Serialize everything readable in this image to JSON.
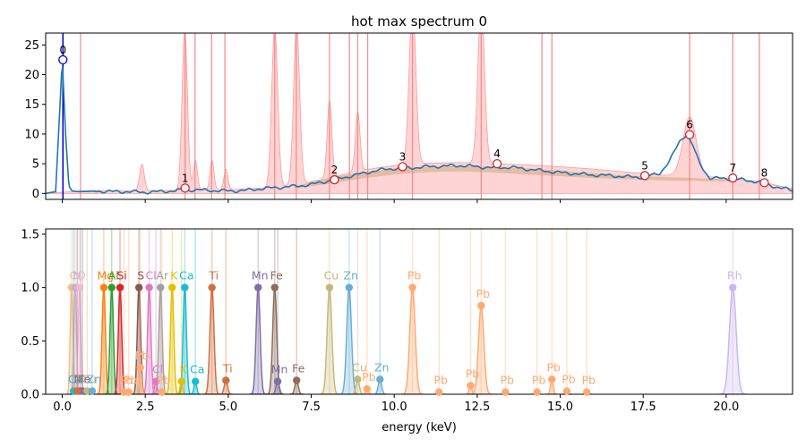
{
  "chart_data": [
    {
      "type": "line",
      "title": "hot max spectrum 0",
      "xlabel": "",
      "ylabel": "",
      "xlim": [
        -0.5,
        22
      ],
      "ylim": [
        -1,
        27
      ],
      "yticks": [
        0,
        5,
        10,
        15,
        20,
        25
      ],
      "xticks": [
        0.0,
        2.5,
        5.0,
        7.5,
        10.0,
        12.5,
        15.0,
        17.5,
        20.0
      ],
      "colors": {
        "spectrum": "#1f77b4",
        "vlines": "#f08080",
        "envelope": "#ffb0b0",
        "background": "#d2a679",
        "peak_marker": "#d62728",
        "zero_peak": "#0000cc"
      },
      "vlines": [
        0.55,
        3.7,
        4.0,
        4.5,
        4.9,
        6.4,
        7.05,
        8.05,
        8.65,
        8.9,
        9.2,
        10.55,
        12.62,
        14.45,
        14.75,
        18.9,
        20.2,
        21.0
      ],
      "spectrum": {
        "x": [
          -0.5,
          -0.2,
          0.0,
          0.1,
          0.2,
          0.3,
          0.5,
          1.0,
          1.5,
          2.0,
          2.5,
          3.0,
          3.5,
          4.0,
          4.5,
          5.0,
          5.5,
          6.0,
          6.5,
          7.0,
          7.5,
          8.0,
          8.5,
          9.0,
          9.5,
          10.0,
          10.5,
          11.0,
          11.5,
          12.0,
          12.5,
          13.0,
          13.5,
          14.0,
          14.5,
          15.0,
          15.5,
          16.0,
          16.5,
          17.0,
          17.5,
          18.0,
          18.3,
          18.6,
          18.8,
          19.0,
          19.2,
          19.5,
          20.0,
          20.5,
          21.0,
          21.5,
          22.0
        ],
        "y": [
          0,
          0.3,
          22.5,
          10,
          1.2,
          0.4,
          0.3,
          0.4,
          0.3,
          0.3,
          0.2,
          0.3,
          0.5,
          0.6,
          0.5,
          0.4,
          0.5,
          0.8,
          1.0,
          1.2,
          1.5,
          2.1,
          2.7,
          3.3,
          3.9,
          4.2,
          4.3,
          4.5,
          4.6,
          4.7,
          4.5,
          4.3,
          4.4,
          4.1,
          3.8,
          3.5,
          3.3,
          3.1,
          3.0,
          2.8,
          2.7,
          3.4,
          5.5,
          8.8,
          10.0,
          8.0,
          5.0,
          2.6,
          2.5,
          2.3,
          1.9,
          1.1,
          0.5
        ]
      },
      "envelope": {
        "x": [
          -0.5,
          0.5,
          1.0,
          2.0,
          3.0,
          4.0,
          5.0,
          6.0,
          7.0,
          8.0,
          9.0,
          10.0,
          11.0,
          12.0,
          13.0,
          14.0,
          15.0,
          16.0,
          17.0,
          18.0,
          19.0,
          20.0,
          21.0,
          22.0
        ],
        "y": [
          0,
          0.4,
          0.5,
          0.4,
          0.5,
          0.6,
          0.6,
          0.9,
          1.4,
          2.6,
          3.9,
          4.7,
          5.1,
          5.2,
          5.0,
          4.8,
          4.5,
          4.1,
          3.6,
          3.1,
          2.9,
          2.6,
          2.0,
          0.8
        ]
      },
      "envelope_peaks": [
        {
          "x": 2.4,
          "y": 4.5,
          "w": 0.07
        },
        {
          "x": 3.69,
          "y": 27,
          "w": 0.08
        },
        {
          "x": 4.01,
          "y": 5.0,
          "w": 0.06
        },
        {
          "x": 4.51,
          "y": 5.0,
          "w": 0.06
        },
        {
          "x": 4.93,
          "y": 3.5,
          "w": 0.06
        },
        {
          "x": 6.4,
          "y": 27,
          "w": 0.09
        },
        {
          "x": 7.06,
          "y": 27,
          "w": 0.09
        },
        {
          "x": 8.05,
          "y": 13,
          "w": 0.07
        },
        {
          "x": 8.9,
          "y": 10,
          "w": 0.07
        },
        {
          "x": 10.55,
          "y": 27,
          "w": 0.1
        },
        {
          "x": 12.62,
          "y": 27,
          "w": 0.1
        },
        {
          "x": 18.9,
          "y": 10,
          "w": 0.2
        }
      ],
      "background": {
        "x": [
          7.0,
          8.0,
          9.0,
          10.0,
          11.0,
          12.0,
          13.0,
          14.0,
          15.0,
          16.0,
          17.0,
          18.0,
          19.0,
          20.0
        ],
        "upper": [
          1.2,
          2.6,
          3.5,
          4.2,
          4.5,
          4.6,
          4.5,
          4.2,
          3.8,
          3.4,
          3.0,
          2.8,
          2.6,
          2.4
        ],
        "lower": [
          0.8,
          1.6,
          2.5,
          3.2,
          3.6,
          3.7,
          3.5,
          3.2,
          2.9,
          2.6,
          2.4,
          2.2,
          2.1,
          2.0
        ]
      },
      "peaks": [
        {
          "label": "0",
          "x": 0.02,
          "y": 22.5
        },
        {
          "label": "1",
          "x": 3.7,
          "y": 0.9
        },
        {
          "label": "2",
          "x": 8.2,
          "y": 2.3
        },
        {
          "label": "3",
          "x": 10.25,
          "y": 4.5
        },
        {
          "label": "4",
          "x": 13.1,
          "y": 5.0
        },
        {
          "label": "5",
          "x": 17.55,
          "y": 3.0
        },
        {
          "label": "6",
          "x": 18.9,
          "y": 9.9
        },
        {
          "label": "7",
          "x": 20.2,
          "y": 2.6
        },
        {
          "label": "8",
          "x": 21.15,
          "y": 1.8
        }
      ]
    },
    {
      "type": "line",
      "title": "",
      "xlabel": "energy (keV)",
      "ylabel": "",
      "xlim": [
        -0.5,
        22
      ],
      "ylim": [
        0,
        1.55
      ],
      "yticks": [
        0.0,
        0.5,
        1.0,
        1.5
      ],
      "xticks": [
        0.0,
        2.5,
        5.0,
        7.5,
        10.0,
        12.5,
        15.0,
        17.5,
        20.0
      ],
      "lines": [
        {
          "label": "C",
          "x": 0.28,
          "y": 1.0,
          "color": "#ffbb78",
          "w": 0.04
        },
        {
          "label": "N",
          "x": 0.39,
          "y": 1.0,
          "color": "#c5b0d5",
          "w": 0.04
        },
        {
          "label": "O",
          "x": 0.52,
          "y": 1.0,
          "color": "#f7b6d2",
          "w": 0.04
        },
        {
          "label": "Mg",
          "x": 1.25,
          "y": 1.0,
          "color": "#ff7f0e",
          "w": 0.05
        },
        {
          "label": "Al",
          "x": 1.49,
          "y": 1.0,
          "color": "#2ca02c",
          "w": 0.05
        },
        {
          "label": "Si",
          "x": 1.74,
          "y": 1.0,
          "color": "#d62728",
          "w": 0.05
        },
        {
          "label": "S",
          "x": 2.31,
          "y": 1.0,
          "color": "#8c564b",
          "w": 0.05
        },
        {
          "label": "Cl",
          "x": 2.62,
          "y": 1.0,
          "color": "#e377c2",
          "w": 0.05
        },
        {
          "label": "Ar",
          "x": 2.96,
          "y": 1.0,
          "color": "#a0a0a0",
          "w": 0.05
        },
        {
          "label": "K",
          "x": 3.31,
          "y": 1.0,
          "color": "#e6c000",
          "w": 0.05
        },
        {
          "label": "Ca",
          "x": 3.69,
          "y": 1.0,
          "color": "#17becf",
          "w": 0.05
        },
        {
          "label": "Ti",
          "x": 4.51,
          "y": 1.0,
          "color": "#d07040",
          "w": 0.06
        },
        {
          "label": "Mn",
          "x": 5.9,
          "y": 1.0,
          "color": "#7f6fa8",
          "w": 0.06
        },
        {
          "label": "Fe",
          "x": 6.4,
          "y": 1.0,
          "color": "#8c6d5a",
          "w": 0.06
        },
        {
          "label": "Cu",
          "x": 8.05,
          "y": 1.0,
          "color": "#c8b878",
          "w": 0.07
        },
        {
          "label": "Zn",
          "x": 8.64,
          "y": 1.0,
          "color": "#6aaed6",
          "w": 0.07
        },
        {
          "label": "Pb",
          "x": 10.55,
          "y": 1.0,
          "color": "#ffaa70",
          "w": 0.08
        },
        {
          "label": "Rh",
          "x": 20.2,
          "y": 1.0,
          "color": "#c8b8f0",
          "w": 0.1
        },
        {
          "label": "Pb",
          "x": 12.62,
          "y": 0.83,
          "color": "#ffaa70",
          "w": 0.08
        },
        {
          "label": "Ti",
          "x": 4.93,
          "y": 0.13,
          "color": "#d07040",
          "w": 0.05
        },
        {
          "label": "Mn",
          "x": 6.49,
          "y": 0.12,
          "color": "#7f6fa8",
          "w": 0.05
        },
        {
          "label": "Fe",
          "x": 7.06,
          "y": 0.13,
          "color": "#8c6d5a",
          "w": 0.05
        },
        {
          "label": "Cu",
          "x": 8.9,
          "y": 0.14,
          "color": "#c8b878",
          "w": 0.05
        },
        {
          "label": "Zn",
          "x": 9.57,
          "y": 0.14,
          "color": "#6aaed6",
          "w": 0.05
        },
        {
          "label": "Ca",
          "x": 4.01,
          "y": 0.12,
          "color": "#17becf",
          "w": 0.04
        },
        {
          "label": "K",
          "x": 3.59,
          "y": 0.12,
          "color": "#e6c000",
          "w": 0.04
        },
        {
          "label": "Cl",
          "x": 2.82,
          "y": 0.12,
          "color": "#e377c2",
          "w": 0.04
        },
        {
          "label": "Pb",
          "x": 2.35,
          "y": 0.25,
          "color": "#ffaa70",
          "w": 0.04
        },
        {
          "label": "Pb",
          "x": 9.18,
          "y": 0.05,
          "color": "#ffaa70",
          "w": 0.04
        },
        {
          "label": "Pb",
          "x": 11.35,
          "y": 0.02,
          "color": "#ffaa70",
          "w": 0.04
        },
        {
          "label": "Pb",
          "x": 12.3,
          "y": 0.08,
          "color": "#ffaa70",
          "w": 0.04
        },
        {
          "label": "Pb",
          "x": 13.35,
          "y": 0.02,
          "color": "#ffaa70",
          "w": 0.04
        },
        {
          "label": "Pb",
          "x": 14.3,
          "y": 0.02,
          "color": "#ffaa70",
          "w": 0.04
        },
        {
          "label": "Pb",
          "x": 14.75,
          "y": 0.14,
          "color": "#ffaa70",
          "w": 0.04
        },
        {
          "label": "Pb",
          "x": 15.2,
          "y": 0.03,
          "color": "#ffaa70",
          "w": 0.04
        },
        {
          "label": "Pb",
          "x": 15.8,
          "y": 0.02,
          "color": "#ffaa70",
          "w": 0.04
        },
        {
          "label": "Pb",
          "x": 1.86,
          "y": 0.02,
          "color": "#ffaa70",
          "w": 0.04
        },
        {
          "label": "Pb",
          "x": 2.0,
          "y": 0.02,
          "color": "#ffaa70",
          "w": 0.04
        },
        {
          "label": "Pb",
          "x": 3.0,
          "y": 0.02,
          "color": "#ffaa70",
          "w": 0.04
        },
        {
          "label": "Cl",
          "x": 0.45,
          "y": 0.03,
          "color": "#c5b0d5",
          "w": 0.03
        },
        {
          "label": "Fe",
          "x": 0.61,
          "y": 0.03,
          "color": "#8c6d5a",
          "w": 0.03
        },
        {
          "label": "Mn",
          "x": 0.55,
          "y": 0.03,
          "color": "#7f6fa8",
          "w": 0.03
        },
        {
          "label": "Cu",
          "x": 0.75,
          "y": 0.03,
          "color": "#c8b878",
          "w": 0.03
        },
        {
          "label": "Zn",
          "x": 0.9,
          "y": 0.03,
          "color": "#6aaed6",
          "w": 0.03
        },
        {
          "label": "Ca",
          "x": 0.34,
          "y": 0.03,
          "color": "#17becf",
          "w": 0.03
        },
        {
          "label": "Ti",
          "x": 0.45,
          "y": 0.03,
          "color": "#d07040",
          "w": 0.03
        }
      ]
    }
  ]
}
